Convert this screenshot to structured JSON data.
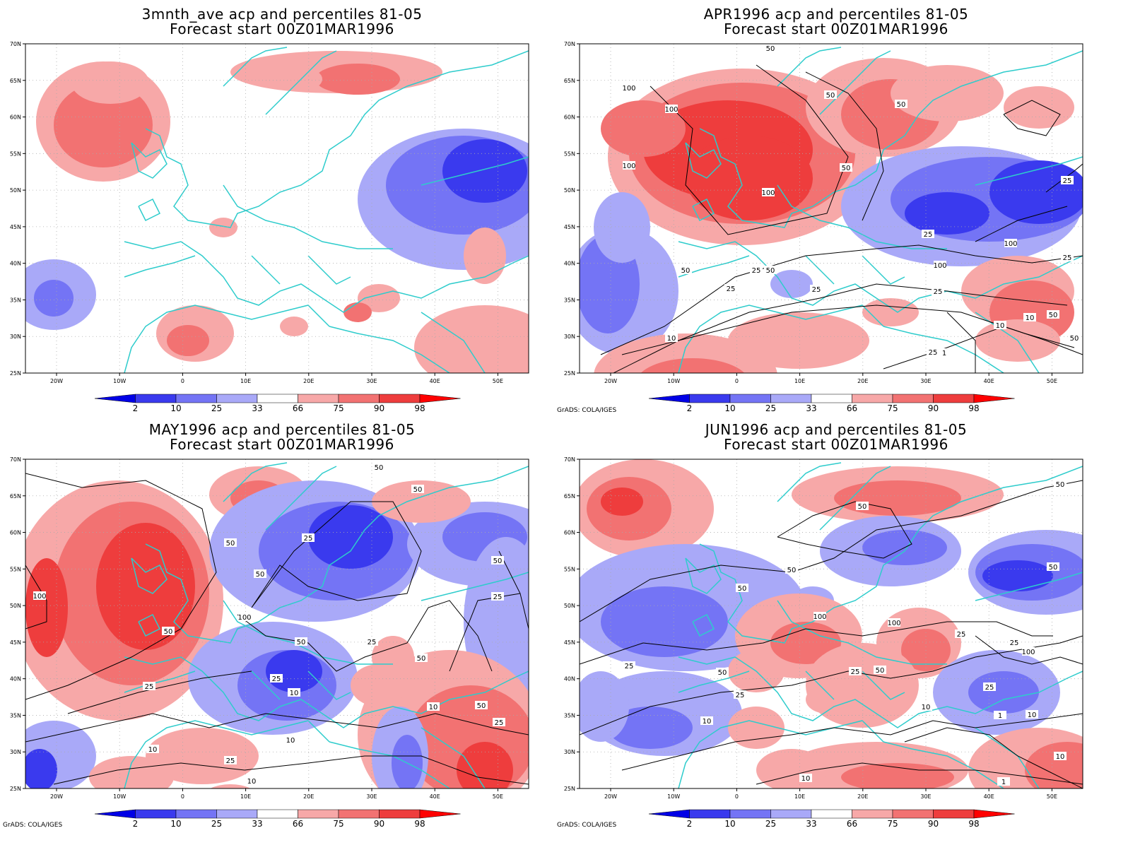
{
  "panels": [
    {
      "title1": "3mnth_ave acp and percentiles 81-05",
      "title2": "Forecast start 00Z01MAR1996",
      "contour_labels": [],
      "credit": ""
    },
    {
      "title1": "APR1996 acp and percentiles 81-05",
      "title2": "Forecast start 00Z01MAR1996",
      "contour_labels": [
        "50",
        "100",
        "50",
        "100",
        "50",
        "100",
        "100",
        "50",
        "25",
        "100",
        "25",
        "25",
        "100",
        "50",
        "50",
        "25",
        "25",
        "25",
        "25",
        "50",
        "10",
        "10",
        "10",
        "50",
        "25",
        "1"
      ],
      "credit": "GrADS: COLA/IGES"
    },
    {
      "title1": "MAY1996 acp and percentiles 81-05",
      "title2": "Forecast start 00Z01MAR1996",
      "contour_labels": [
        "50",
        "50",
        "25",
        "50",
        "50",
        "100",
        "100",
        "50",
        "50",
        "50",
        "25",
        "25",
        "10",
        "25",
        "50",
        "25",
        "50",
        "10",
        "25",
        "10",
        "10",
        "25",
        "10"
      ],
      "credit": "GrADS: COLA/IGES"
    },
    {
      "title1": "JUN1996 acp and percentiles 81-05",
      "title2": "Forecast start 00Z01MAR1996",
      "contour_labels": [
        "50",
        "50",
        "50",
        "50",
        "100",
        "100",
        "50",
        "25",
        "25",
        "25",
        "100",
        "25",
        "50",
        "50",
        "25",
        "25",
        "10",
        "1",
        "10",
        "10",
        "10",
        "10",
        "1"
      ],
      "credit": "GrADS: COLA/IGES"
    }
  ],
  "lat_labels": [
    "70N",
    "65N",
    "60N",
    "55N",
    "50N",
    "45N",
    "40N",
    "35N",
    "30N",
    "25N"
  ],
  "lon_labels": [
    "20W",
    "10W",
    "0",
    "10E",
    "20E",
    "30E",
    "40E",
    "50E"
  ],
  "colorbar": {
    "labels": [
      "2",
      "10",
      "25",
      "33",
      "66",
      "75",
      "90",
      "98"
    ],
    "colors": [
      "#0000e6",
      "#3a3aee",
      "#7474f5",
      "#a9a9f8",
      "#ffffff",
      "#f7a8a8",
      "#f27272",
      "#ee3d3d",
      "#ff0000"
    ]
  },
  "colors": {
    "coast": "#2ecccc",
    "contour": "#000000",
    "grid": "#aaaaaa"
  }
}
